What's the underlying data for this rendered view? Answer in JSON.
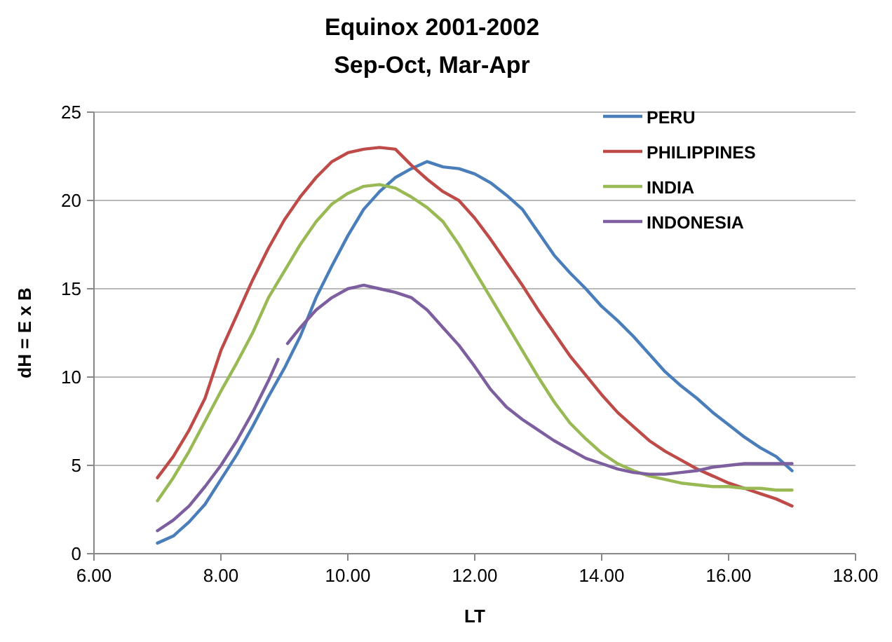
{
  "chart_data": {
    "type": "line",
    "title": "Equinox 2001-2002",
    "subtitle": "Sep-Oct, Mar-Apr",
    "xlabel": "LT",
    "ylabel": "dH = E x B",
    "x": [
      7,
      7.25,
      7.5,
      7.75,
      8,
      8.25,
      8.5,
      8.75,
      9,
      9.25,
      9.5,
      9.75,
      10,
      10.25,
      10.5,
      10.75,
      11,
      11.25,
      11.5,
      11.75,
      12,
      12.25,
      12.5,
      12.75,
      13,
      13.25,
      13.5,
      13.75,
      14,
      14.25,
      14.5,
      14.75,
      15,
      15.25,
      15.5,
      15.75,
      16,
      16.25,
      16.5,
      16.75,
      17
    ],
    "xlim": [
      6,
      18
    ],
    "xticks": [
      {
        "value": 6,
        "label": "6.00"
      },
      {
        "value": 8,
        "label": "8.00"
      },
      {
        "value": 10,
        "label": "10.00"
      },
      {
        "value": 12,
        "label": "12.00"
      },
      {
        "value": 14,
        "label": "14.00"
      },
      {
        "value": 16,
        "label": "16.00"
      },
      {
        "value": 18,
        "label": "18.00"
      }
    ],
    "ylim": [
      0,
      25
    ],
    "yticks": [
      0,
      5,
      10,
      15,
      20,
      25
    ],
    "grid": "y",
    "legend": "top right",
    "line_style": "solid",
    "series": [
      {
        "name": "PERU",
        "color": "#4a7ebb",
        "values": [
          0.6,
          1.0,
          1.8,
          2.8,
          4.2,
          5.6,
          7.2,
          8.9,
          10.5,
          12.3,
          14.5,
          16.3,
          18.0,
          19.5,
          20.5,
          21.3,
          21.8,
          22.2,
          21.9,
          21.8,
          21.5,
          21.0,
          20.3,
          19.5,
          18.2,
          16.9,
          15.9,
          15.0,
          14.0,
          13.2,
          12.3,
          11.3,
          10.3,
          9.5,
          8.8,
          8.0,
          7.3,
          6.6,
          6.0,
          5.5,
          4.7
        ]
      },
      {
        "name": "PHILIPPINES",
        "color": "#be4b48",
        "values": [
          4.3,
          5.5,
          7.0,
          8.8,
          11.5,
          13.5,
          15.5,
          17.3,
          18.9,
          20.2,
          21.3,
          22.2,
          22.7,
          22.9,
          23.0,
          22.9,
          22.0,
          21.2,
          20.5,
          20.0,
          19.0,
          17.8,
          16.5,
          15.2,
          13.8,
          12.5,
          11.2,
          10.1,
          9.0,
          8.0,
          7.2,
          6.4,
          5.8,
          5.3,
          4.8,
          4.4,
          4.0,
          3.7,
          3.4,
          3.1,
          2.7
        ]
      },
      {
        "name": "INDIA",
        "color": "#98b954",
        "values": [
          3.0,
          4.3,
          5.8,
          7.5,
          9.2,
          10.8,
          12.5,
          14.5,
          16.0,
          17.5,
          18.8,
          19.8,
          20.4,
          20.8,
          20.9,
          20.7,
          20.2,
          19.6,
          18.8,
          17.5,
          16.0,
          14.5,
          13.0,
          11.5,
          10.0,
          8.6,
          7.4,
          6.5,
          5.7,
          5.1,
          4.7,
          4.4,
          4.2,
          4.0,
          3.9,
          3.8,
          3.8,
          3.7,
          3.7,
          3.6,
          3.6
        ]
      },
      {
        "name": "INDONESIA",
        "color": "#7d5fa0",
        "x": [
          7,
          7.25,
          7.5,
          7.75,
          8,
          8.25,
          8.5,
          8.75,
          8.9,
          8.95,
          9.05,
          9.25,
          9.5,
          9.75,
          10,
          10.25,
          10.5,
          10.75,
          11,
          11.25,
          11.5,
          11.75,
          12,
          12.25,
          12.5,
          12.75,
          13,
          13.25,
          13.5,
          13.75,
          14,
          14.25,
          14.5,
          14.75,
          15,
          15.25,
          15.5,
          15.75,
          16,
          16.25,
          16.5,
          16.75,
          17
        ],
        "values": [
          1.3,
          1.9,
          2.7,
          3.8,
          5.0,
          6.4,
          8.0,
          9.8,
          11.0,
          null,
          11.9,
          12.8,
          13.8,
          14.5,
          15.0,
          15.2,
          15.0,
          14.8,
          14.5,
          13.8,
          12.8,
          11.8,
          10.6,
          9.3,
          8.3,
          7.6,
          7.0,
          6.4,
          5.9,
          5.4,
          5.1,
          4.8,
          4.6,
          4.5,
          4.5,
          4.6,
          4.7,
          4.9,
          5.0,
          5.1,
          5.1,
          5.1,
          5.1
        ]
      }
    ]
  }
}
